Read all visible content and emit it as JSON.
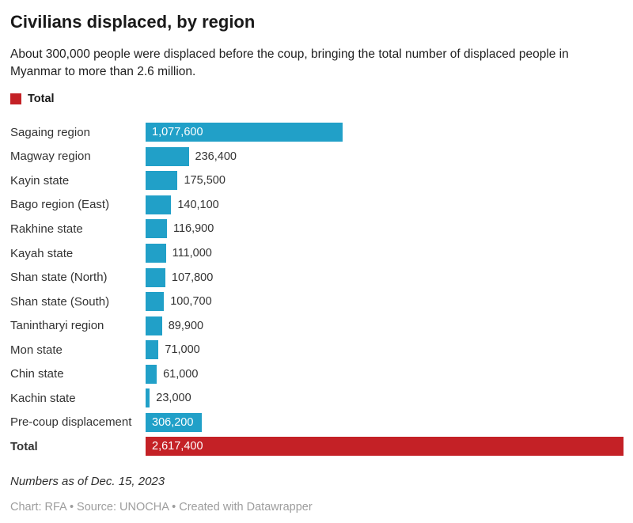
{
  "header": {
    "title": "Civilians displaced, by region",
    "subtitle": "About 300,000 people were displaced before the coup, bringing the total number of displaced people in Myanmar to more than 2.6 million."
  },
  "legend": {
    "label": "Total",
    "swatch_color": "#c42126"
  },
  "chart_data": {
    "type": "bar",
    "orientation": "horizontal",
    "title": "Civilians displaced, by region",
    "xlim": [
      0,
      2617400
    ],
    "grid": false,
    "legend_position": "top-left",
    "bar_colors": {
      "region": "#21a0c8",
      "total": "#c42126"
    },
    "rows": [
      {
        "label": "Sagaing region",
        "value": 1077600,
        "display": "1,077,600",
        "value_position": "inside",
        "color": "region",
        "bold": false
      },
      {
        "label": "Magway region",
        "value": 236400,
        "display": "236,400",
        "value_position": "outside",
        "color": "region",
        "bold": false
      },
      {
        "label": "Kayin state",
        "value": 175500,
        "display": "175,500",
        "value_position": "outside",
        "color": "region",
        "bold": false
      },
      {
        "label": "Bago region (East)",
        "value": 140100,
        "display": "140,100",
        "value_position": "outside",
        "color": "region",
        "bold": false
      },
      {
        "label": "Rakhine state",
        "value": 116900,
        "display": "116,900",
        "value_position": "outside",
        "color": "region",
        "bold": false
      },
      {
        "label": "Kayah state",
        "value": 111000,
        "display": "111,000",
        "value_position": "outside",
        "color": "region",
        "bold": false
      },
      {
        "label": "Shan state (North)",
        "value": 107800,
        "display": "107,800",
        "value_position": "outside",
        "color": "region",
        "bold": false
      },
      {
        "label": "Shan state (South)",
        "value": 100700,
        "display": "100,700",
        "value_position": "outside",
        "color": "region",
        "bold": false
      },
      {
        "label": "Tanintharyi region",
        "value": 89900,
        "display": "89,900",
        "value_position": "outside",
        "color": "region",
        "bold": false
      },
      {
        "label": "Mon state",
        "value": 71000,
        "display": "71,000",
        "value_position": "outside",
        "color": "region",
        "bold": false
      },
      {
        "label": "Chin state",
        "value": 61000,
        "display": "61,000",
        "value_position": "outside",
        "color": "region",
        "bold": false
      },
      {
        "label": "Kachin state",
        "value": 23000,
        "display": "23,000",
        "value_position": "outside",
        "color": "region",
        "bold": false
      },
      {
        "label": "Pre-coup displacement",
        "value": 306200,
        "display": "306,200",
        "value_position": "inside",
        "color": "region",
        "bold": false
      },
      {
        "label": "Total",
        "value": 2617400,
        "display": "2,617,400",
        "value_position": "inside",
        "color": "total",
        "bold": true
      }
    ]
  },
  "footer": {
    "note": "Numbers as of Dec. 15, 2023",
    "byline": "Chart: RFA • Source: UNOCHA • Created with Datawrapper"
  }
}
